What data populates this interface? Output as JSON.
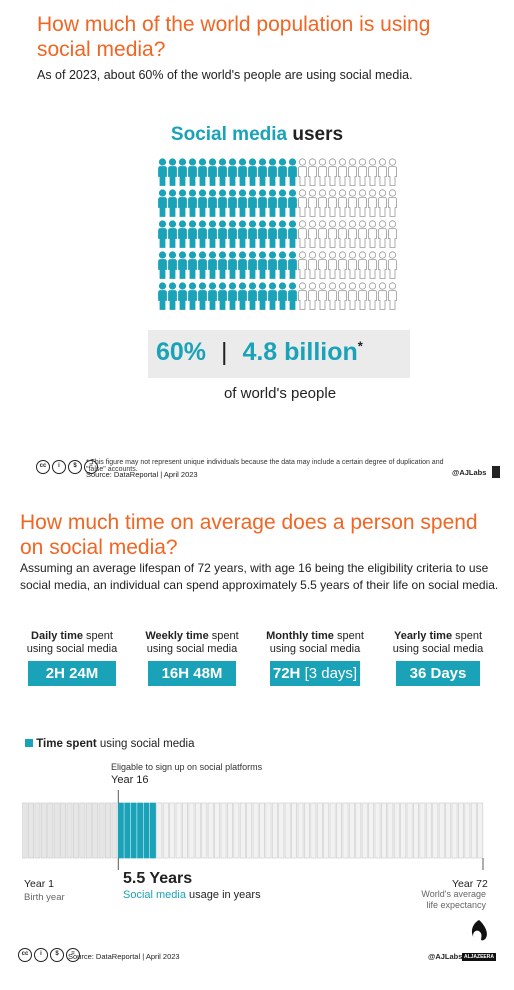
{
  "section1": {
    "title_line1": "How much of the world population is using",
    "title_line2": "social media?",
    "subtitle": "As of 2023, about 60% of the world's people are using social media.",
    "heading_teal": "Social media",
    "heading_dark": "users",
    "percent": "60%",
    "divider": "|",
    "billion": "4.8 billion",
    "asterisk": "*",
    "caption": "of world's people",
    "footnote": "* This figure may not represent unique individuals because the data may include a certain degree of duplication and \"false\" accounts.",
    "source": "Source: DataReportal | April 2023",
    "credit": "@AJLabs"
  },
  "section2": {
    "title_line1": "How much time on average does a person spend",
    "title_line2": "on social media?",
    "desc_line1": "Assuming an average lifespan of 72 years, with age 16 being the eligibility criteria to use",
    "desc_line2": "social media, an individual can spend approximately 5.5 years of their life on social media."
  },
  "metrics": [
    {
      "bold": "Daily time",
      "rest": " spent",
      "line2": "using social media",
      "value": "2H 24M",
      "extra": ""
    },
    {
      "bold": "Weekly time",
      "rest": " spent",
      "line2": "using social media",
      "value": "16H 48M",
      "extra": ""
    },
    {
      "bold": "Monthly time",
      "rest": " spent",
      "line2": "using social media",
      "value": "72H",
      "extra": " [3 days]"
    },
    {
      "bold": "Yearly time",
      "rest": " spent",
      "line2": "using social media",
      "value": "36 Days",
      "extra": ""
    }
  ],
  "timeline": {
    "legend_bold": "Time spent",
    "legend_rest": " using social media",
    "eligible_note": "Eligable to sign up on social platforms",
    "year16": "Year 16",
    "year1": "Year 1",
    "birth": "Birth year",
    "year72": "Year 72",
    "life1": "World's average",
    "life2": "life expectancy",
    "years_value": "5.5 Years",
    "usage_teal": "Social media",
    "usage_rest": " usage in years",
    "source": "Source: DataReportal | April 2023",
    "credit": "@AJLabs",
    "logo_text": "ALJAZEERA"
  },
  "chart_data": [
    {
      "type": "table",
      "title": "Social media users",
      "people_total": 120,
      "people_highlighted": 72,
      "share_percent": 60,
      "users_billion": 4.8,
      "colors": {
        "highlight": "#1aa3b8",
        "base": "#ffffff",
        "outline": "#999999"
      }
    },
    {
      "type": "bar",
      "title": "Time spent using social media",
      "years_total": 72,
      "start_year": 16,
      "usage_years": 5.5,
      "colors": {
        "highlight": "#1aa3b8",
        "base": "#f2f2f2",
        "outline": "#cfcfcf"
      }
    }
  ]
}
